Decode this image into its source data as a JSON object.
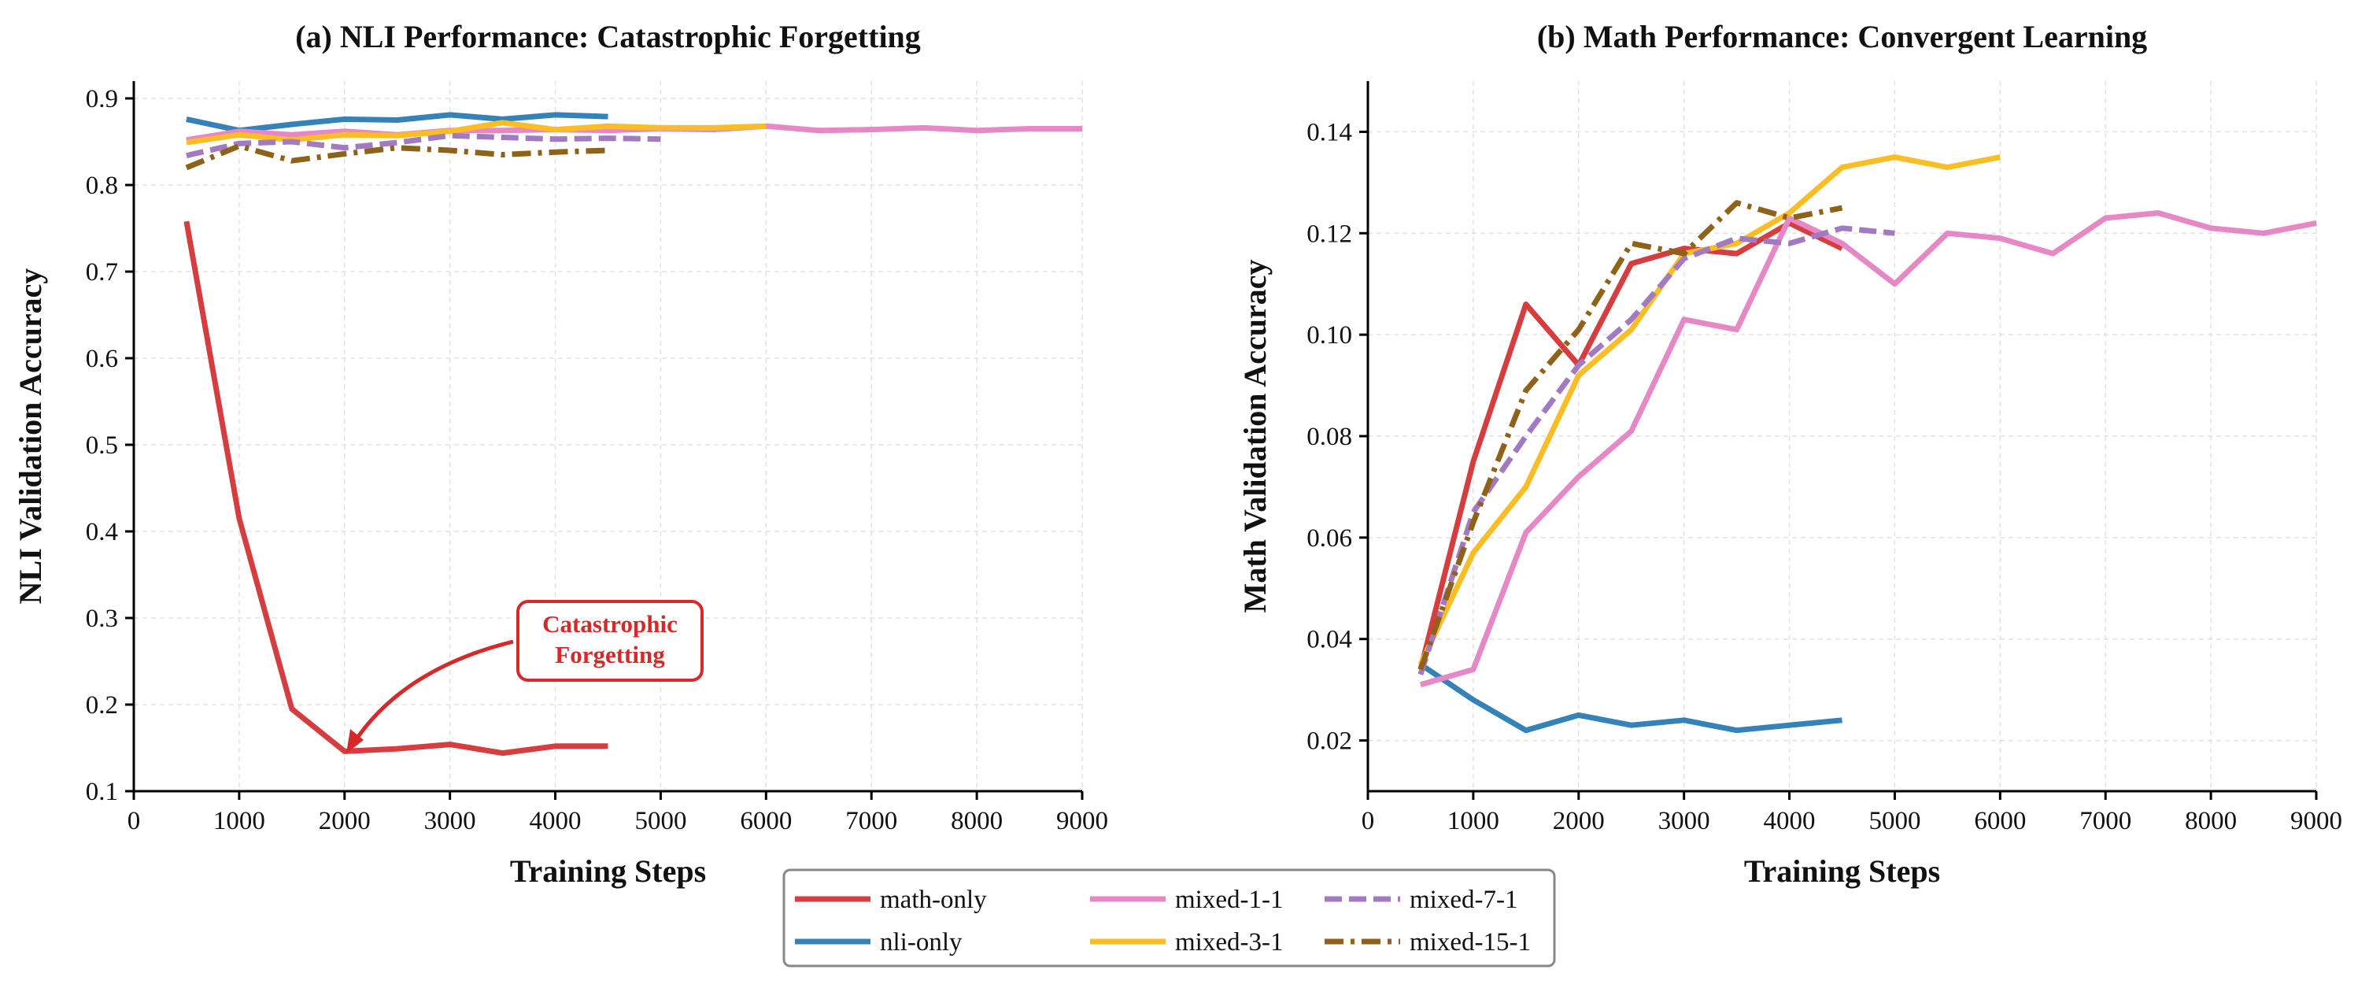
{
  "chart_data": [
    {
      "type": "line",
      "title": "(a) NLI Performance: Catastrophic Forgetting",
      "xlabel": "Training Steps",
      "ylabel": "NLI Validation Accuracy",
      "xlim": [
        0,
        9000
      ],
      "ylim": [
        0.1,
        0.92
      ],
      "xticks": [
        "0",
        "1000",
        "2000",
        "3000",
        "4000",
        "5000",
        "6000",
        "7000",
        "8000",
        "9000"
      ],
      "yticks": [
        "0.1",
        "0.2",
        "0.3",
        "0.4",
        "0.5",
        "0.6",
        "0.7",
        "0.8",
        "0.9"
      ],
      "grid": true,
      "annotation": {
        "lines": [
          "Catastrophic",
          "Forgetting"
        ],
        "points_to": [
          2000,
          0.146
        ]
      },
      "series": [
        {
          "name": "math-only",
          "x": [
            500,
            1000,
            1500,
            2000,
            2500,
            3000,
            3500,
            4000,
            4500
          ],
          "y": [
            0.758,
            0.415,
            0.195,
            0.146,
            0.149,
            0.154,
            0.144,
            0.152,
            0.152
          ]
        },
        {
          "name": "nli-only",
          "x": [
            500,
            1000,
            1500,
            2000,
            2500,
            3000,
            3500,
            4000,
            4500
          ],
          "y": [
            0.876,
            0.863,
            0.87,
            0.876,
            0.875,
            0.881,
            0.876,
            0.881,
            0.879
          ]
        },
        {
          "name": "mixed-1-1",
          "x": [
            500,
            1000,
            1500,
            2000,
            2500,
            3000,
            3500,
            4000,
            4500,
            5000,
            5500,
            6000,
            6500,
            7000,
            7500,
            8000,
            8500,
            9000
          ],
          "y": [
            0.852,
            0.862,
            0.858,
            0.862,
            0.858,
            0.863,
            0.863,
            0.864,
            0.863,
            0.865,
            0.864,
            0.868,
            0.863,
            0.864,
            0.866,
            0.863,
            0.865,
            0.865
          ]
        },
        {
          "name": "mixed-3-1",
          "x": [
            500,
            1000,
            1500,
            2000,
            2500,
            3000,
            3500,
            4000,
            4500,
            5000,
            5500,
            6000
          ],
          "y": [
            0.849,
            0.858,
            0.852,
            0.858,
            0.857,
            0.862,
            0.872,
            0.864,
            0.868,
            0.866,
            0.866,
            0.868
          ]
        },
        {
          "name": "mixed-7-1",
          "x": [
            500,
            1000,
            1500,
            2000,
            2500,
            3000,
            3500,
            4000,
            4500,
            5000
          ],
          "y": [
            0.834,
            0.848,
            0.85,
            0.843,
            0.849,
            0.857,
            0.855,
            0.853,
            0.854,
            0.853
          ]
        },
        {
          "name": "mixed-15-1",
          "x": [
            500,
            1000,
            1500,
            2000,
            2500,
            3000,
            3500,
            4000,
            4500
          ],
          "y": [
            0.82,
            0.845,
            0.828,
            0.836,
            0.843,
            0.84,
            0.835,
            0.838,
            0.84
          ]
        }
      ]
    },
    {
      "type": "line",
      "title": "(b) Math Performance: Convergent Learning",
      "xlabel": "Training Steps",
      "ylabel": "Math Validation Accuracy",
      "xlim": [
        0,
        9000
      ],
      "ylim": [
        0.01,
        0.15
      ],
      "xticks": [
        "0",
        "1000",
        "2000",
        "3000",
        "4000",
        "5000",
        "6000",
        "7000",
        "8000",
        "9000"
      ],
      "yticks": [
        "0.02",
        "0.04",
        "0.06",
        "0.08",
        "0.10",
        "0.12",
        "0.14"
      ],
      "grid": true,
      "series": [
        {
          "name": "math-only",
          "x": [
            500,
            1000,
            1500,
            2000,
            2500,
            3000,
            3500,
            4000,
            4500
          ],
          "y": [
            0.034,
            0.075,
            0.106,
            0.094,
            0.114,
            0.117,
            0.116,
            0.122,
            0.117
          ]
        },
        {
          "name": "nli-only",
          "x": [
            500,
            1000,
            1500,
            2000,
            2500,
            3000,
            3500,
            4000,
            4500
          ],
          "y": [
            0.035,
            0.028,
            0.022,
            0.025,
            0.023,
            0.024,
            0.022,
            0.023,
            0.024
          ]
        },
        {
          "name": "mixed-1-1",
          "x": [
            500,
            1000,
            1500,
            2000,
            2500,
            3000,
            3500,
            4000,
            4500,
            5000,
            5500,
            6000,
            6500,
            7000,
            7500,
            8000,
            8500,
            9000
          ],
          "y": [
            0.031,
            0.034,
            0.061,
            0.072,
            0.081,
            0.103,
            0.101,
            0.123,
            0.118,
            0.11,
            0.12,
            0.119,
            0.116,
            0.123,
            0.124,
            0.121,
            0.12,
            0.122
          ]
        },
        {
          "name": "mixed-3-1",
          "x": [
            500,
            1000,
            1500,
            2000,
            2500,
            3000,
            3500,
            4000,
            4500,
            5000,
            5500,
            6000
          ],
          "y": [
            0.035,
            0.057,
            0.07,
            0.092,
            0.101,
            0.116,
            0.118,
            0.124,
            0.133,
            0.135,
            0.133,
            0.135
          ]
        },
        {
          "name": "mixed-7-1",
          "x": [
            500,
            1000,
            1500,
            2000,
            2500,
            3000,
            3500,
            4000,
            4500,
            5000
          ],
          "y": [
            0.033,
            0.065,
            0.08,
            0.094,
            0.103,
            0.115,
            0.119,
            0.118,
            0.121,
            0.12
          ]
        },
        {
          "name": "mixed-15-1",
          "x": [
            500,
            1000,
            1500,
            2000,
            2500,
            3000,
            3500,
            4000,
            4500
          ],
          "y": [
            0.034,
            0.063,
            0.089,
            0.101,
            0.118,
            0.116,
            0.126,
            0.123,
            0.125
          ]
        }
      ]
    }
  ],
  "legend": {
    "location": "bottom-center",
    "columns": [
      [
        "math-only",
        "nli-only"
      ],
      [
        "mixed-1-1",
        "mixed-3-1"
      ],
      [
        "mixed-7-1",
        "mixed-15-1"
      ]
    ]
  },
  "styles": {
    "math-only": {
      "color": "#d63d3f",
      "dash": "solid"
    },
    "nli-only": {
      "color": "#3482b8",
      "dash": "solid"
    },
    "mixed-1-1": {
      "color": "#e688c6",
      "dash": "solid"
    },
    "mixed-3-1": {
      "color": "#fbbd25",
      "dash": "solid"
    },
    "mixed-7-1": {
      "color": "#a27ac1",
      "dash": "dashed"
    },
    "mixed-15-1": {
      "color": "#8f6219",
      "dash": "dashdot"
    },
    "annotation_color": "#d62a2a",
    "grid_color": "#e2e2e2"
  }
}
